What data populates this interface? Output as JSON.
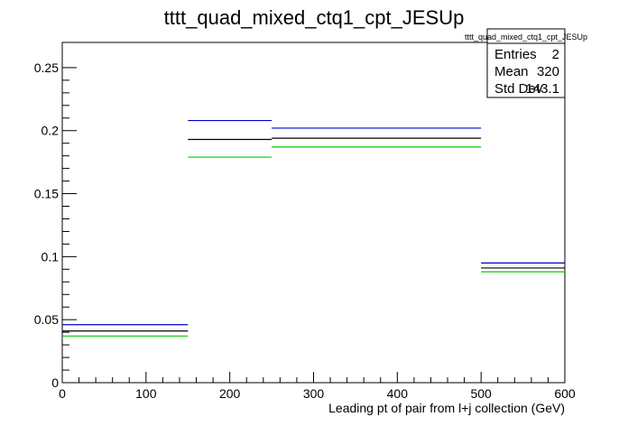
{
  "chart_data": {
    "type": "step",
    "title": "tttt_quad_mixed_ctq1_cpt_JESUp",
    "xlabel": "Leading pt of pair from l+j collection (GeV)",
    "ylabel": "",
    "xlim": [
      0,
      600
    ],
    "ylim": [
      0,
      0.27
    ],
    "x_ticks": [
      0,
      100,
      200,
      300,
      400,
      500,
      600
    ],
    "y_ticks": [
      0,
      0.05,
      0.1,
      0.15,
      0.2,
      0.25
    ],
    "x_tick_labels": [
      "0",
      "100",
      "200",
      "300",
      "400",
      "500",
      "600"
    ],
    "y_tick_labels": [
      "0",
      "0.05",
      "0.1",
      "0.15",
      "0.2",
      "0.25"
    ],
    "bin_edges": [
      0,
      150,
      250,
      500,
      600
    ],
    "series": [
      {
        "color": "#0000cc",
        "values": [
          0.046,
          0.208,
          0.202,
          0.095
        ]
      },
      {
        "color": "#000000",
        "values": [
          0.041,
          0.193,
          0.194,
          0.091
        ]
      },
      {
        "color": "#00cc00",
        "values": [
          0.037,
          0.179,
          0.187,
          0.088
        ]
      }
    ],
    "stats_box": {
      "title": "tttt_quad_mixed_ctq1_cpt_JESUp",
      "rows": [
        {
          "label": "Entries",
          "value": "2"
        },
        {
          "label": "Mean",
          "value": "320"
        },
        {
          "label": "Std Dev",
          "value": "143.1"
        }
      ]
    }
  }
}
